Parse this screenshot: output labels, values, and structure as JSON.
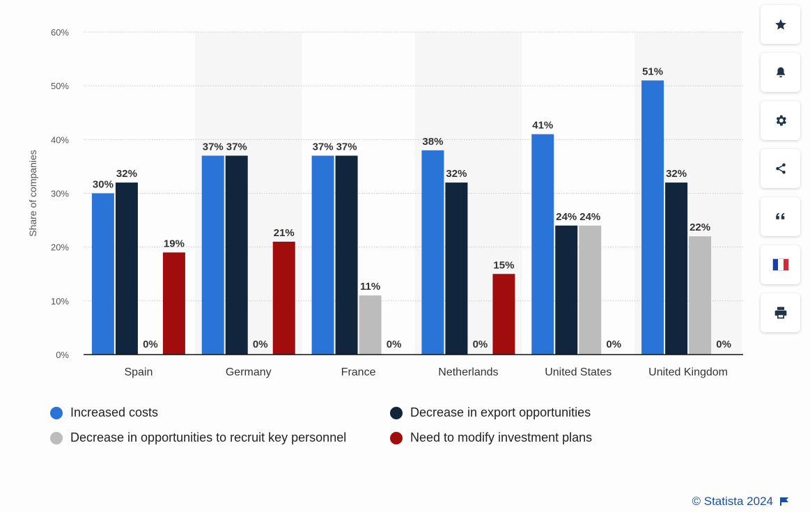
{
  "chart_data": {
    "type": "bar",
    "title": "",
    "xlabel": "",
    "ylabel": "Share of companies",
    "ylim": [
      0,
      60
    ],
    "yticks": [
      "0%",
      "10%",
      "20%",
      "30%",
      "40%",
      "50%",
      "60%"
    ],
    "categories": [
      "Spain",
      "Germany",
      "France",
      "Netherlands",
      "United States",
      "United Kingdom"
    ],
    "series": [
      {
        "name": "Increased costs",
        "color": "#2a74d8",
        "values": [
          30,
          37,
          37,
          38,
          41,
          51
        ],
        "labels": [
          "30%",
          "37%",
          "37%",
          "38%",
          "41%",
          "51%"
        ]
      },
      {
        "name": "Decrease in export opportunities",
        "color": "#11263c",
        "values": [
          32,
          37,
          37,
          32,
          24,
          32
        ],
        "labels": [
          "32%",
          "37%",
          "37%",
          "32%",
          "24%",
          "32%"
        ]
      },
      {
        "name": "Decrease in opportunities to recruit key personnel",
        "color": "#bcbcbc",
        "values": [
          0,
          0,
          11,
          0,
          24,
          22
        ],
        "labels": [
          "0%",
          "0%",
          "11%",
          "0%",
          "24%",
          "22%"
        ]
      },
      {
        "name": "Need to modify investment plans",
        "color": "#a10d0d",
        "values": [
          19,
          21,
          0,
          15,
          0,
          0
        ],
        "labels": [
          "19%",
          "21%",
          "0%",
          "15%",
          "0%",
          "0%"
        ]
      }
    ],
    "legend_position": "bottom",
    "grid": true
  },
  "sidebar": [
    {
      "icon": "star-icon",
      "label": "favorite"
    },
    {
      "icon": "bell-icon",
      "label": "notification"
    },
    {
      "icon": "gear-icon",
      "label": "settings"
    },
    {
      "icon": "share-icon",
      "label": "share"
    },
    {
      "icon": "quote-icon",
      "label": "cite"
    },
    {
      "icon": "flag-fr-icon",
      "label": "language"
    },
    {
      "icon": "print-icon",
      "label": "print"
    }
  ],
  "credit": "© Statista 2024"
}
